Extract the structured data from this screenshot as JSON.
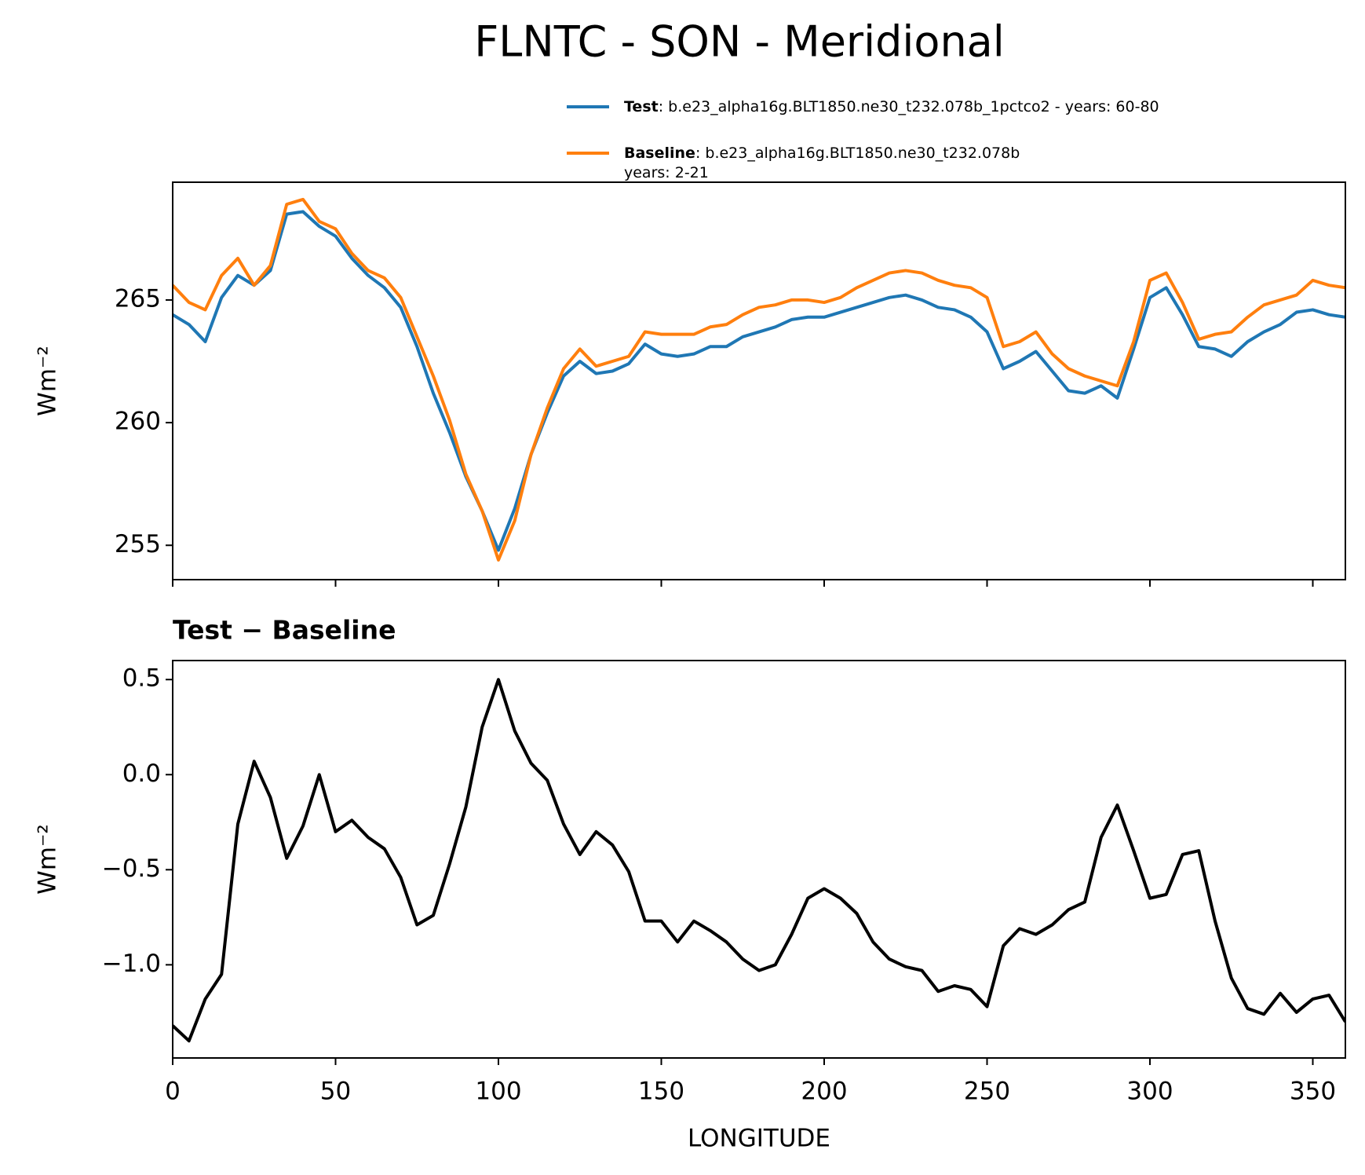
{
  "chart_data": [
    {
      "type": "line",
      "title": "FLNTC - SON - Meridional",
      "ylabel": "Wm⁻²",
      "x": [
        0,
        5,
        10,
        15,
        20,
        25,
        30,
        35,
        40,
        45,
        50,
        55,
        60,
        65,
        70,
        75,
        80,
        85,
        90,
        95,
        100,
        105,
        110,
        115,
        120,
        125,
        130,
        135,
        140,
        145,
        150,
        155,
        160,
        165,
        170,
        175,
        180,
        185,
        190,
        195,
        200,
        205,
        210,
        215,
        220,
        225,
        230,
        235,
        240,
        245,
        250,
        255,
        260,
        265,
        270,
        275,
        280,
        285,
        290,
        295,
        300,
        305,
        310,
        315,
        320,
        325,
        330,
        335,
        340,
        345,
        350,
        355,
        360
      ],
      "series": [
        {
          "name": "Test",
          "description": [
            ": b.e23_alpha16g.BLT1850.ne30_t232.078b_1pctco2 - years: 60-80"
          ],
          "color": "#1f77b4",
          "values": [
            264.4,
            264.0,
            263.3,
            265.1,
            266.0,
            265.6,
            266.2,
            268.5,
            268.6,
            268.0,
            267.6,
            266.7,
            266.0,
            265.5,
            264.7,
            263.1,
            261.2,
            259.6,
            257.8,
            256.4,
            254.8,
            256.5,
            258.7,
            260.4,
            261.9,
            262.5,
            262.0,
            262.1,
            262.4,
            263.2,
            262.8,
            262.7,
            262.8,
            263.1,
            263.1,
            263.5,
            263.7,
            263.9,
            264.2,
            264.3,
            264.3,
            264.5,
            264.7,
            264.9,
            265.1,
            265.2,
            265.0,
            264.7,
            264.6,
            264.3,
            263.7,
            262.2,
            262.5,
            262.9,
            262.1,
            261.3,
            261.2,
            261.5,
            261.0,
            263.0,
            265.1,
            265.5,
            264.4,
            263.1,
            263.0,
            262.7,
            263.3,
            263.7,
            264.0,
            264.5,
            264.6,
            264.4,
            264.3
          ]
        },
        {
          "name": "Baseline",
          "description": [
            ": b.e23_alpha16g.BLT1850.ne30_t232.078b",
            "years: 2-21"
          ],
          "color": "#ff7f0e",
          "values": [
            265.6,
            264.9,
            264.6,
            266.0,
            266.7,
            265.6,
            266.4,
            268.9,
            269.1,
            268.2,
            267.9,
            266.9,
            266.2,
            265.9,
            265.1,
            263.5,
            261.9,
            260.1,
            257.9,
            256.4,
            254.4,
            256.0,
            258.7,
            260.6,
            262.2,
            263.0,
            262.3,
            262.5,
            262.7,
            263.7,
            263.6,
            263.6,
            263.6,
            263.9,
            264.0,
            264.4,
            264.7,
            264.8,
            265.0,
            265.0,
            264.9,
            265.1,
            265.5,
            265.8,
            266.1,
            266.2,
            266.1,
            265.8,
            265.6,
            265.5,
            265.1,
            263.1,
            263.3,
            263.7,
            262.8,
            262.2,
            261.9,
            261.7,
            261.5,
            263.3,
            265.8,
            266.1,
            264.9,
            263.4,
            263.6,
            263.7,
            264.3,
            264.8,
            265.0,
            265.2,
            265.8,
            265.6,
            265.5
          ]
        }
      ],
      "xlim": [
        0,
        360
      ],
      "xticks": [
        0,
        50,
        100,
        150,
        200,
        250,
        300,
        350
      ],
      "ylim": [
        253.6,
        269.8
      ],
      "yticks": [
        255,
        260,
        265
      ]
    },
    {
      "type": "line",
      "subtitle": "Test − Baseline",
      "ylabel": "Wm⁻²",
      "xlabel": "LONGITUDE",
      "x": [
        0,
        5,
        10,
        15,
        20,
        25,
        30,
        35,
        40,
        45,
        50,
        55,
        60,
        65,
        70,
        75,
        80,
        85,
        90,
        95,
        100,
        105,
        110,
        115,
        120,
        125,
        130,
        135,
        140,
        145,
        150,
        155,
        160,
        165,
        170,
        175,
        180,
        185,
        190,
        195,
        200,
        205,
        210,
        215,
        220,
        225,
        230,
        235,
        240,
        245,
        250,
        255,
        260,
        265,
        270,
        275,
        280,
        285,
        290,
        295,
        300,
        305,
        310,
        315,
        320,
        325,
        330,
        335,
        340,
        345,
        350,
        355,
        360
      ],
      "series": [
        {
          "color": "#000000",
          "values": [
            -1.32,
            -1.4,
            -1.18,
            -1.05,
            -0.26,
            0.07,
            -0.12,
            -0.44,
            -0.27,
            0.0,
            -0.3,
            -0.24,
            -0.33,
            -0.39,
            -0.54,
            -0.79,
            -0.74,
            -0.47,
            -0.17,
            0.25,
            0.5,
            0.23,
            0.06,
            -0.03,
            -0.26,
            -0.42,
            -0.3,
            -0.37,
            -0.51,
            -0.77,
            -0.77,
            -0.88,
            -0.77,
            -0.82,
            -0.88,
            -0.97,
            -1.03,
            -1.0,
            -0.84,
            -0.65,
            -0.6,
            -0.65,
            -0.73,
            -0.88,
            -0.97,
            -1.01,
            -1.03,
            -1.14,
            -1.11,
            -1.13,
            -1.22,
            -0.9,
            -0.81,
            -0.84,
            -0.79,
            -0.71,
            -0.67,
            -0.33,
            -0.16,
            -0.4,
            -0.65,
            -0.63,
            -0.42,
            -0.4,
            -0.77,
            -1.07,
            -1.23,
            -1.26,
            -1.15,
            -1.25,
            -1.18,
            -1.16,
            -1.3
          ]
        }
      ],
      "xlim": [
        0,
        360
      ],
      "xticks": [
        0,
        50,
        100,
        150,
        200,
        250,
        300,
        350
      ],
      "ylim": [
        -1.49,
        0.6
      ],
      "yticks": [
        {
          "value": -1.0,
          "label": "−1.0"
        },
        {
          "value": -0.5,
          "label": "−0.5"
        },
        {
          "value": 0,
          "label": "0.0"
        },
        0.5
      ]
    }
  ]
}
